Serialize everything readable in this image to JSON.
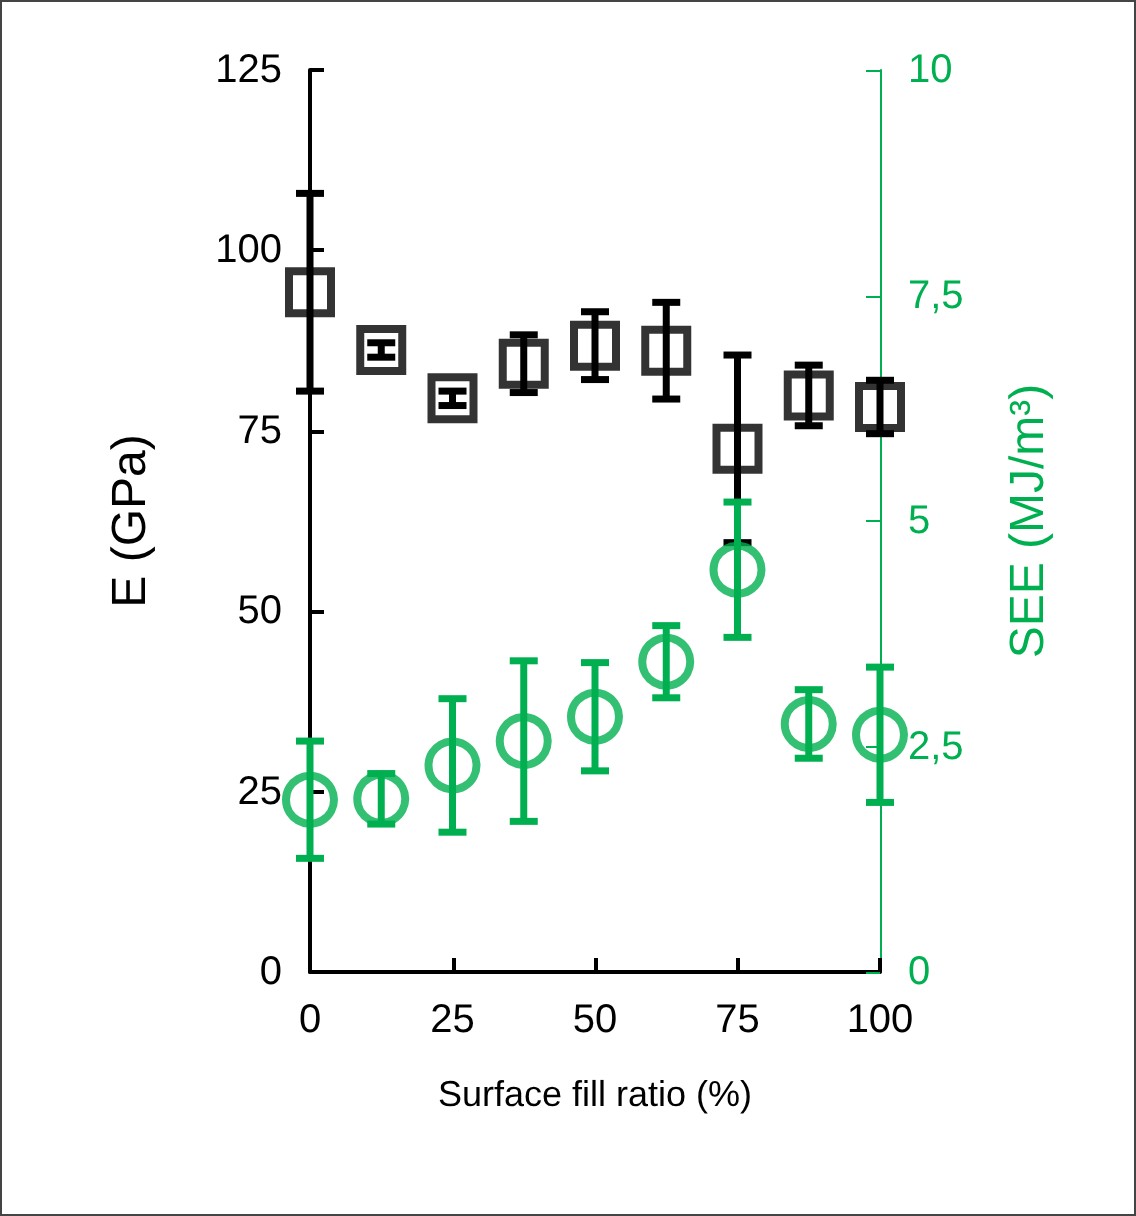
{
  "chart_data": {
    "type": "scatter",
    "xlabel": "Surface fill ratio (%)",
    "ylabel": "E (GPa)",
    "y2label": "SEE (MJ/m³)",
    "x": [
      0,
      12.5,
      25,
      37.5,
      50,
      62.5,
      75,
      87.5,
      100
    ],
    "xlim": [
      0,
      100
    ],
    "xticks": [
      0,
      25,
      50,
      75,
      100
    ],
    "ylim": [
      0,
      125
    ],
    "yticks": [
      0,
      25,
      50,
      75,
      100,
      125
    ],
    "y2lim": [
      0,
      10
    ],
    "y2ticks": [
      0,
      {
        "value": 2.5,
        "label": "2,5"
      },
      5,
      {
        "value": 7.5,
        "label": "7,5"
      },
      10
    ],
    "grid": false,
    "series": [
      {
        "color": "#000000",
        "marker": "square",
        "values": [
          94.2,
          86.2,
          79.5,
          84.3,
          86.8,
          86.1,
          72.5,
          79.9,
          78.3
        ],
        "errors": [
          13.7,
          1,
          1,
          4,
          4.7,
          6.7,
          13,
          4.2,
          3.7
        ]
      },
      {
        "color": "#00b050",
        "marker": "circle",
        "axis": "y2",
        "values": [
          1.91,
          1.92,
          2.29,
          2.56,
          2.83,
          3.44,
          4.46,
          2.75,
          2.63
        ],
        "errors": [
          0.65,
          0.28,
          0.74,
          0.89,
          0.6,
          0.4,
          0.75,
          0.38,
          0.75
        ]
      }
    ]
  }
}
